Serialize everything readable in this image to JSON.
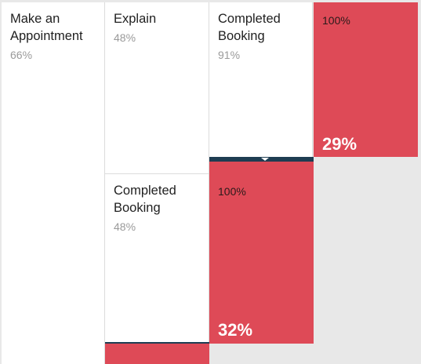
{
  "chart_data": {
    "type": "funnel",
    "stages": [
      {
        "label": "Make an Appointment",
        "percent": "66%",
        "children": [
          {
            "label": "Explain",
            "percent": "48%",
            "children": [
              {
                "label": "Completed Booking",
                "percent": "91%",
                "drop_label": "100%",
                "drop_value": "29%"
              }
            ]
          },
          {
            "label": "Completed Booking",
            "percent": "48%",
            "drop_label": "100%",
            "drop_value": "32%"
          }
        ]
      }
    ],
    "colors": {
      "drop": "#de4a57",
      "divider": "#1e3d52",
      "node": "#ffffff",
      "background": "#e8e8e8"
    }
  }
}
